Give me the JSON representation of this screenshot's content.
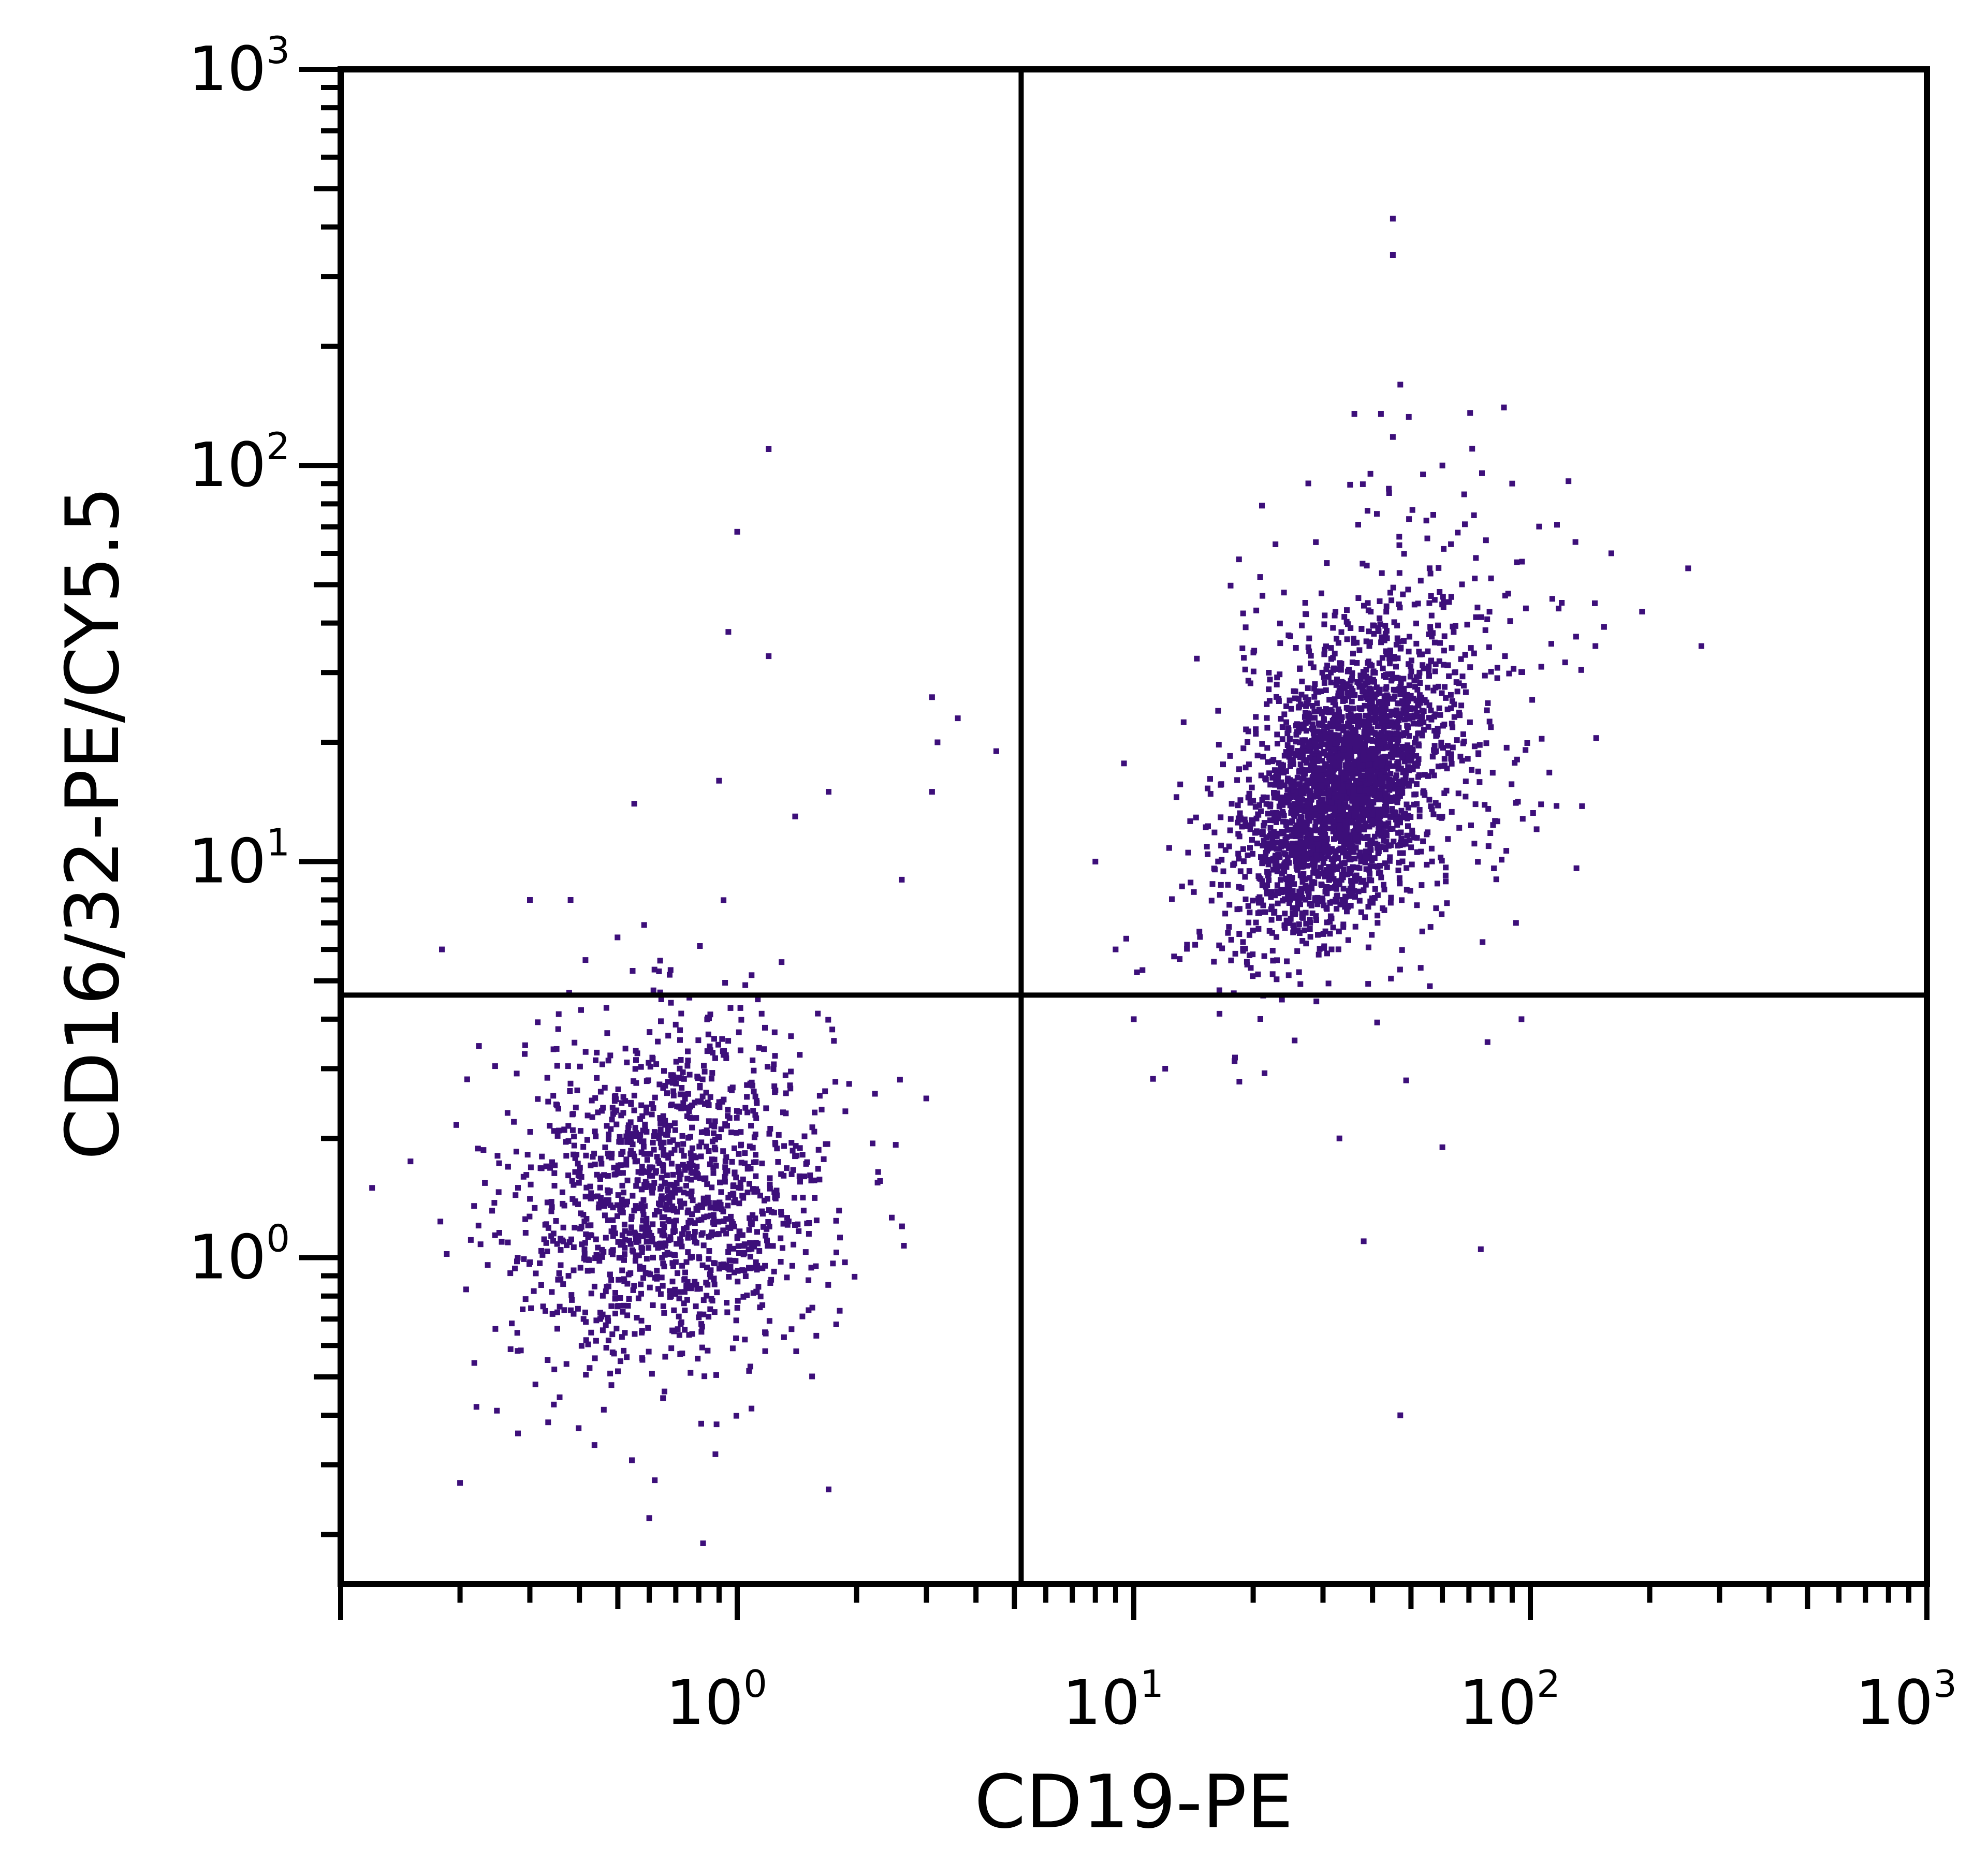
{
  "chart_data": {
    "type": "scatter",
    "xlabel": "CD19-PE",
    "ylabel": "CD16/32-PE/CY5.5",
    "xscale": "log",
    "yscale": "log",
    "xlim": [
      0.1,
      1000
    ],
    "ylim": [
      0.15,
      1000
    ],
    "x_tick_labels": [
      {
        "value": 1,
        "base": "10",
        "exp": "0"
      },
      {
        "value": 10,
        "base": "10",
        "exp": "1"
      },
      {
        "value": 100,
        "base": "10",
        "exp": "2"
      },
      {
        "value": 1000,
        "base": "10",
        "exp": "3"
      }
    ],
    "y_tick_labels": [
      {
        "value": 1,
        "base": "10",
        "exp": "0"
      },
      {
        "value": 10,
        "base": "10",
        "exp": "1"
      },
      {
        "value": 100,
        "base": "10",
        "exp": "2"
      },
      {
        "value": 1000,
        "base": "10",
        "exp": "3"
      }
    ],
    "quadrant_gate": {
      "x": 5.2,
      "y": 4.6
    },
    "grid": false,
    "legend": "none",
    "point_color": "#3d0f7a",
    "line_color": "#000000",
    "populations": [
      {
        "center": [
          0.68,
          1.45
        ],
        "spread_log10": [
          0.2,
          0.22
        ],
        "correlation": 0.1,
        "count": 1400
      },
      {
        "center": [
          33,
          15
        ],
        "spread_log10": [
          0.12,
          0.17
        ],
        "correlation": 0.45,
        "count": 2200
      },
      {
        "center": [
          40,
          20
        ],
        "spread_log10": [
          0.22,
          0.28
        ],
        "correlation": 0.35,
        "count": 700
      }
    ],
    "outliers": [
      [
        1.2,
        110
      ],
      [
        1.0,
        68
      ],
      [
        0.95,
        38
      ],
      [
        1.2,
        33
      ],
      [
        0.9,
        16
      ],
      [
        1.7,
        15
      ],
      [
        1.4,
        13
      ],
      [
        2.6,
        9
      ],
      [
        3.1,
        26
      ],
      [
        3.6,
        23
      ],
      [
        4.5,
        19
      ],
      [
        3.2,
        20
      ],
      [
        3.1,
        15
      ],
      [
        0.55,
        14
      ],
      [
        0.3,
        8
      ],
      [
        0.38,
        8
      ],
      [
        0.18,
        6
      ],
      [
        0.15,
        1.75
      ],
      [
        0.12,
        1.5
      ],
      [
        0.2,
        0.27
      ],
      [
        0.22,
        0.42
      ],
      [
        0.6,
        0.22
      ],
      [
        0.82,
        0.19
      ],
      [
        1.7,
        0.26
      ],
      [
        0.28,
        0.36
      ],
      [
        45,
        420
      ],
      [
        45,
        340
      ],
      [
        47,
        160
      ],
      [
        36,
        135
      ],
      [
        42,
        135
      ],
      [
        45,
        118
      ],
      [
        60,
        100
      ],
      [
        90,
        90
      ],
      [
        160,
        60
      ],
      [
        250,
        55
      ],
      [
        270,
        35
      ],
      [
        120,
        45
      ],
      [
        8,
        10
      ],
      [
        9,
        6
      ],
      [
        10,
        4
      ],
      [
        33,
        2
      ],
      [
        38,
        1.1
      ],
      [
        75,
        1.05
      ],
      [
        47,
        0.4
      ],
      [
        60,
        1.9
      ],
      [
        95,
        4
      ],
      [
        92,
        7
      ],
      [
        78,
        3.5
      ],
      [
        12,
        3
      ],
      [
        18,
        3.2
      ]
    ]
  }
}
